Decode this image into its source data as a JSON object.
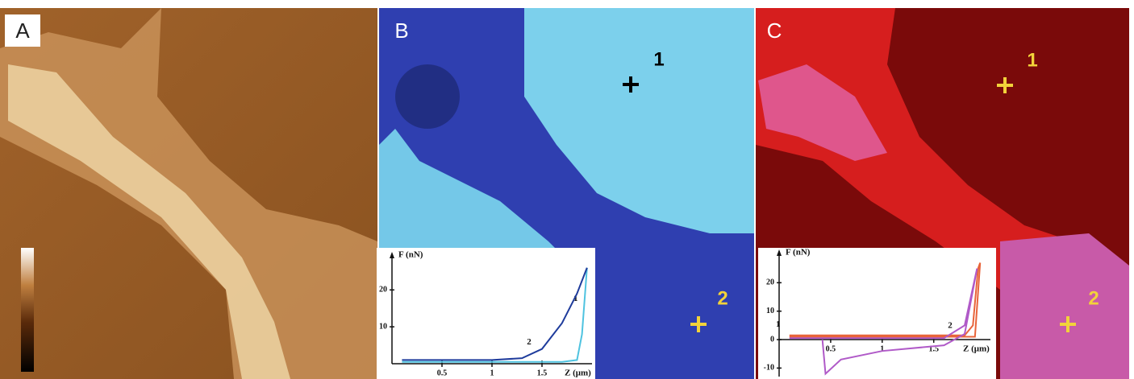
{
  "panels": [
    {
      "label": "A"
    },
    {
      "label": "B",
      "points": [
        {
          "label": "1"
        },
        {
          "label": "2"
        }
      ],
      "inset": {
        "y_label": "F (nN)",
        "x_label": "Z (μm)",
        "xlim": [
          0,
          2.0
        ],
        "ylim": [
          0,
          29
        ],
        "xticks": [
          0.5,
          1,
          1.5
        ],
        "yticks": [
          10,
          20
        ],
        "series": [
          {
            "name": "1",
            "color": "#4fc3e0",
            "x": [
              0.1,
              1.0,
              1.7,
              1.85,
              1.9,
              1.95
            ],
            "y": [
              0.5,
              0.5,
              0.5,
              1,
              8,
              26
            ]
          },
          {
            "name": "2",
            "color": "#1f3c9c",
            "x": [
              0.1,
              0.5,
              1.0,
              1.3,
              1.5,
              1.7,
              1.85,
              1.95
            ],
            "y": [
              1,
              1,
              1,
              1.5,
              4,
              11,
              19,
              26
            ]
          }
        ]
      }
    },
    {
      "label": "C",
      "points": [
        {
          "label": "1"
        },
        {
          "label": "2"
        }
      ],
      "inset": {
        "y_label": "F (nN)",
        "x_label": "Z (μm)",
        "xlim": [
          0,
          2.05
        ],
        "ylim": [
          -13,
          30
        ],
        "xticks": [
          0.5,
          1,
          1.5
        ],
        "yticks": [
          -10,
          0,
          10,
          20
        ],
        "series": [
          {
            "name": "1",
            "color": "#e8643a",
            "x": [
              0.1,
              1.0,
              1.8,
              1.88,
              1.93,
              1.95,
              1.9,
              1.0,
              0.1
            ],
            "y": [
              1.5,
              1.5,
              1.5,
              5,
              25,
              27,
              1,
              1,
              1
            ]
          },
          {
            "name": "2",
            "color": "#b05ac8",
            "x": [
              0.1,
              1.0,
              1.6,
              1.8,
              1.92,
              1.8,
              1.6,
              1.0,
              0.6,
              0.45,
              0.42
            ],
            "y": [
              0.5,
              0.5,
              0.5,
              5,
              25,
              2,
              -2,
              -4,
              -7,
              -12,
              0
            ]
          }
        ]
      }
    }
  ]
}
